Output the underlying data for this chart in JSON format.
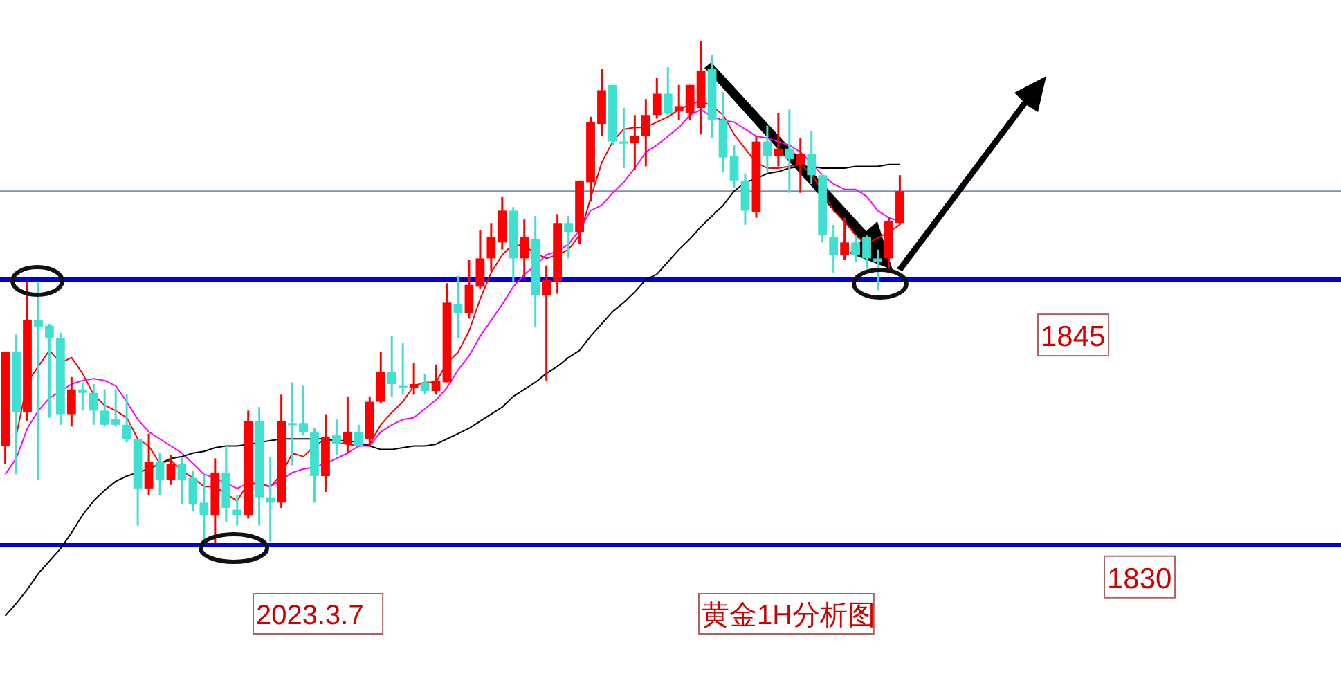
{
  "chart_data": {
    "type": "candlestick",
    "categories": [
      null,
      null,
      null,
      null,
      null,
      null,
      null,
      null,
      null,
      null,
      null,
      null,
      null,
      null,
      null,
      null,
      null,
      null,
      null,
      null,
      null,
      null,
      null,
      null,
      null,
      null,
      null,
      null,
      null,
      null,
      null,
      null,
      null,
      null,
      null,
      null,
      null,
      null,
      null,
      null,
      null,
      null,
      null,
      null,
      null,
      null,
      null,
      null,
      null,
      null,
      null,
      null,
      null,
      null,
      null,
      null,
      null,
      null,
      null,
      null,
      null,
      null,
      null,
      null,
      null,
      null,
      null,
      null,
      null,
      null,
      null,
      null,
      null,
      null,
      null,
      null,
      null,
      null,
      null,
      null,
      null,
      null
    ],
    "ohlc": [
      [
        1835.6,
        1840.9,
        1834.6,
        1840.9
      ],
      [
        1840.9,
        1841.9,
        1834.0,
        1837.5
      ],
      [
        1837.5,
        1844.9,
        1837.0,
        1842.7
      ],
      [
        1842.7,
        1844.9,
        1833.7,
        1842.3
      ],
      [
        1842.4,
        1842.5,
        1837.2,
        1841.7
      ],
      [
        1841.7,
        1842.0,
        1836.8,
        1837.4
      ],
      [
        1837.4,
        1839.5,
        1836.7,
        1838.8
      ],
      [
        1838.8,
        1839.2,
        1837.6,
        1838.6
      ],
      [
        1838.6,
        1839.1,
        1836.8,
        1837.6
      ],
      [
        1837.6,
        1838.8,
        1836.7,
        1836.8
      ],
      [
        1837.1,
        1838.8,
        1836.7,
        1836.8
      ],
      [
        1836.8,
        1838.5,
        1835.8,
        1836.0
      ],
      [
        1836.0,
        1836.0,
        1831.1,
        1833.2
      ],
      [
        1833.2,
        1836.3,
        1832.8,
        1834.7
      ],
      [
        1834.7,
        1835.2,
        1832.8,
        1833.7
      ],
      [
        1833.7,
        1835.1,
        1833.4,
        1834.6
      ],
      [
        1834.6,
        1835.0,
        1832.3,
        1833.7
      ],
      [
        1833.8,
        1834.2,
        1831.9,
        1832.3
      ],
      [
        1832.4,
        1834.0,
        1830.1,
        1831.7
      ],
      [
        1831.7,
        1834.9,
        1830.1,
        1834.1
      ],
      [
        1834.1,
        1835.6,
        1831.3,
        1832.1
      ],
      [
        1832.0,
        1832.8,
        1831.1,
        1831.7
      ],
      [
        1831.7,
        1837.6,
        1831.5,
        1837.0
      ],
      [
        1837.0,
        1837.8,
        1831.1,
        1832.7
      ],
      [
        1832.7,
        1835.0,
        1830.2,
        1832.4
      ],
      [
        1832.4,
        1838.5,
        1832.1,
        1837.0
      ],
      [
        1836.9,
        1839.2,
        1834.5,
        1836.8
      ],
      [
        1836.9,
        1839.0,
        1836.2,
        1836.4
      ],
      [
        1836.4,
        1836.6,
        1832.4,
        1833.9
      ],
      [
        1833.9,
        1837.4,
        1833.0,
        1836.1
      ],
      [
        1836.2,
        1837.1,
        1835.1,
        1835.7
      ],
      [
        1835.7,
        1838.4,
        1835.2,
        1836.4
      ],
      [
        1836.4,
        1836.8,
        1835.6,
        1835.6
      ],
      [
        1836.0,
        1838.4,
        1835.6,
        1838.1
      ],
      [
        1838.1,
        1840.9,
        1838.0,
        1839.8
      ],
      [
        1839.8,
        1841.8,
        1838.4,
        1839.1
      ],
      [
        1839.0,
        1841.4,
        1838.5,
        1838.9
      ],
      [
        1838.9,
        1840.3,
        1838.5,
        1839.1
      ],
      [
        1839.2,
        1839.7,
        1838.5,
        1838.7
      ],
      [
        1838.7,
        1840.2,
        1838.5,
        1839.3
      ],
      [
        1839.2,
        1844.8,
        1839.2,
        1843.7
      ],
      [
        1843.6,
        1845.2,
        1841.7,
        1843.1
      ],
      [
        1843.1,
        1846.1,
        1842.8,
        1844.7
      ],
      [
        1844.6,
        1847.8,
        1844.5,
        1846.2
      ],
      [
        1846.2,
        1848.2,
        1845.5,
        1847.4
      ],
      [
        1847.1,
        1849.7,
        1846.7,
        1848.9
      ],
      [
        1848.9,
        1849.1,
        1844.9,
        1846.2
      ],
      [
        1846.2,
        1848.4,
        1845.1,
        1847.4
      ],
      [
        1847.3,
        1848.6,
        1842.3,
        1844.1
      ],
      [
        1844.1,
        1845.8,
        1839.3,
        1845.0
      ],
      [
        1844.9,
        1848.7,
        1844.2,
        1848.2
      ],
      [
        1848.2,
        1848.6,
        1846.2,
        1847.7
      ],
      [
        1847.7,
        1850.6,
        1847.0,
        1850.6
      ],
      [
        1850.5,
        1854.2,
        1849.4,
        1853.9
      ],
      [
        1853.8,
        1856.9,
        1853.1,
        1855.7
      ],
      [
        1856.0,
        1856.0,
        1852.6,
        1852.8
      ],
      [
        1852.8,
        1854.7,
        1851.3,
        1852.7
      ],
      [
        1852.7,
        1854.3,
        1851.2,
        1853.1
      ],
      [
        1853.1,
        1855.2,
        1851.4,
        1854.3
      ],
      [
        1854.3,
        1856.4,
        1854.1,
        1855.5
      ],
      [
        1855.5,
        1857.0,
        1854.3,
        1854.4
      ],
      [
        1854.5,
        1856.0,
        1854.0,
        1854.8
      ],
      [
        1854.4,
        1856.0,
        1854.0,
        1856.0
      ],
      [
        1854.7,
        1858.5,
        1853.2,
        1856.8
      ],
      [
        1856.9,
        1857.7,
        1853.0,
        1854.0
      ],
      [
        1854.0,
        1855.6,
        1851.1,
        1851.9
      ],
      [
        1852.0,
        1852.6,
        1850.2,
        1850.6
      ],
      [
        1850.6,
        1851.0,
        1848.1,
        1848.9
      ],
      [
        1848.8,
        1853.1,
        1848.5,
        1852.8
      ],
      [
        1852.8,
        1853.7,
        1851.1,
        1852.0
      ],
      [
        1852.0,
        1854.4,
        1851.4,
        1852.4
      ],
      [
        1852.4,
        1854.6,
        1849.9,
        1851.8
      ],
      [
        1851.5,
        1853.0,
        1849.9,
        1852.1
      ],
      [
        1852.1,
        1853.4,
        1850.4,
        1850.9
      ],
      [
        1850.9,
        1851.0,
        1847.1,
        1847.5
      ],
      [
        1847.4,
        1848.1,
        1845.4,
        1846.4
      ],
      [
        1846.4,
        1848.5,
        1846.1,
        1847.1
      ],
      [
        1847.1,
        1847.5,
        1846.0,
        1846.4
      ],
      [
        1847.4,
        1847.5,
        1845.6,
        1846.2
      ],
      [
        1846.2,
        1846.7,
        1844.4,
        1846.0
      ],
      [
        1846.2,
        1848.5,
        1845.4,
        1848.3
      ],
      [
        1848.2,
        1850.9,
        1848.1,
        1850.0
      ]
    ],
    "colors": [
      "#ff0000",
      "#40e0d0",
      "#ff0000",
      "#40e0d0",
      "#40e0d0",
      "#40e0d0",
      "#ff0000",
      "#40e0d0",
      "#40e0d0",
      "#40e0d0",
      "#40e0d0",
      "#40e0d0",
      "#40e0d0",
      "#ff0000",
      "#40e0d0",
      "#ff0000",
      "#40e0d0",
      "#40e0d0",
      "#40e0d0",
      "#ff0000",
      "#40e0d0",
      "#40e0d0",
      "#ff0000",
      "#40e0d0",
      "#40e0d0",
      "#ff0000",
      "#40e0d0",
      "#40e0d0",
      "#40e0d0",
      "#ff0000",
      "#40e0d0",
      "#ff0000",
      "#40e0d0",
      "#ff0000",
      "#ff0000",
      "#40e0d0",
      "#40e0d0",
      "#ff0000",
      "#40e0d0",
      "#ff0000",
      "#ff0000",
      "#40e0d0",
      "#ff0000",
      "#ff0000",
      "#ff0000",
      "#ff0000",
      "#40e0d0",
      "#ff0000",
      "#40e0d0",
      "#ff0000",
      "#ff0000",
      "#40e0d0",
      "#ff0000",
      "#ff0000",
      "#ff0000",
      "#40e0d0",
      "#40e0d0",
      "#ff0000",
      "#ff0000",
      "#ff0000",
      "#40e0d0",
      "#ff0000",
      "#ff0000",
      "#ff0000",
      "#40e0d0",
      "#40e0d0",
      "#40e0d0",
      "#40e0d0",
      "#ff0000",
      "#40e0d0",
      "#ff0000",
      "#40e0d0",
      "#ff0000",
      "#40e0d0",
      "#40e0d0",
      "#40e0d0",
      "#ff0000",
      "#40e0d0",
      "#40e0d0",
      "#40e0d0",
      "#ff0000",
      "#ff0000"
    ],
    "series": [
      {
        "type": "line",
        "color": "#ff0000",
        "values": [
          null,
          1836.2,
          1839.2,
          1840.1,
          1841.0,
          1840.3,
          1840.6,
          1839.7,
          1838.5,
          1837.9,
          1837.6,
          1837.2,
          1836.0,
          1835.6,
          1834.6,
          1834.8,
          1834.2,
          1833.8,
          1833.3,
          1833.3,
          1832.9,
          1832.5,
          1833.5,
          1833.5,
          1833.3,
          1834.0,
          1835.2,
          1835.0,
          1835.6,
          1836.0,
          1835.8,
          1835.7,
          1835.6,
          1835.7,
          1836.8,
          1837.5,
          1838.1,
          1839.0,
          1839.2,
          1839.2,
          1840.3,
          1840.9,
          1842.1,
          1843.9,
          1845.4,
          1846.4,
          1847.0,
          1846.9,
          1846.5,
          1846.2,
          1846.4,
          1846.7,
          1847.5,
          1849.6,
          1851.6,
          1852.8,
          1853.5,
          1853.6,
          1853.6,
          1853.9,
          1854.2,
          1854.6,
          1854.9,
          1855.1,
          1854.8,
          1854.3,
          1853.2,
          1852.4,
          1851.6,
          1851.3,
          1851.3,
          1851.4,
          1851.5,
          1851.0,
          null,
          1848.9,
          1848.3,
          1847.5,
          1847.0,
          null,
          1847.7,
          1848.1
        ]
      },
      {
        "type": "line",
        "color": "#ff00ff",
        "values": [
          1834.0,
          1834.9,
          1836.6,
          1837.6,
          1838.3,
          1838.7,
          1839.1,
          1839.3,
          1839.4,
          1839.3,
          1839.0,
          1838.1,
          1837.1,
          1836.4,
          1836.0,
          1835.6,
          1835.2,
          1834.6,
          1834.0,
          1833.8,
          1833.5,
          1833.2,
          1833.5,
          1833.4,
          1833.3,
          1833.7,
          1834.1,
          1834.3,
          1834.4,
          1834.6,
          1834.9,
          1835.2,
          1835.6,
          1835.6,
          1836.4,
          1836.8,
          1837.1,
          1837.2,
          1837.7,
          1838.2,
          1838.9,
          1839.9,
          1840.7,
          1841.8,
          1842.7,
          1843.6,
          1844.6,
          1845.3,
          1845.8,
          1846.4,
          1846.6,
          1847.0,
          1847.8,
          1848.9,
          1849.2,
          1849.9,
          1850.5,
          1851.3,
          1852.2,
          1852.6,
          1853.1,
          1853.6,
          1854.3,
          1854.6,
          1854.2,
          1854.0,
          1853.9,
          1853.5,
          1853.1,
          1853.0,
          1852.8,
          1852.6,
          1852.2,
          1851.6,
          1850.9,
          1850.4,
          1850.1,
          1850.1,
          1849.7,
          1848.9,
          1848.5,
          1848.3
        ]
      },
      {
        "type": "line",
        "color": "#000000",
        "values": [
          1826.0,
          1826.7,
          1827.5,
          1828.4,
          1829.1,
          1829.8,
          1830.7,
          1831.7,
          1832.5,
          1833.1,
          1833.6,
          1833.9,
          1834.1,
          1834.3,
          1834.6,
          1834.9,
          1835.0,
          1835.2,
          1835.3,
          1835.5,
          1835.6,
          1835.6,
          1835.7,
          1835.8,
          1835.9,
          1836.0,
          1836.0,
          1836.0,
          1836.0,
          1836.0,
          1835.9,
          1835.9,
          1835.8,
          1835.6,
          1835.4,
          1835.4,
          1835.5,
          1835.6,
          1835.6,
          1835.7,
          1836.0,
          1836.3,
          1836.6,
          1837.0,
          1837.4,
          1837.8,
          1838.4,
          1838.8,
          1839.2,
          1839.7,
          1840.1,
          1840.6,
          1841.0,
          1841.8,
          1842.5,
          1843.2,
          1843.7,
          1844.3,
          1845.0,
          1845.3,
          1846.0,
          1846.7,
          1847.3,
          1848.0,
          1848.6,
          1849.2,
          1850.0,
          1850.5,
          1850.7,
          1851.0,
          1851.1,
          1851.3,
          1851.4,
          1851.4,
          1851.3,
          1851.3,
          1851.3,
          1851.4,
          1851.4,
          1851.4,
          1851.5,
          1851.5
        ]
      }
    ],
    "ylim": [
      1821.7,
      1860.8
    ],
    "tick_labels": false,
    "ref_lines": [
      {
        "axis": "y",
        "value": 1850.0,
        "color": "#7f93a8"
      },
      {
        "axis": "y",
        "value": 1845,
        "label": "1845",
        "color": "#0000dd"
      },
      {
        "axis": "y",
        "value": 1830,
        "label": "1830",
        "color": "#0000dd"
      }
    ],
    "annotations": [
      "2023.3.7",
      "黄金1H分析图"
    ]
  }
}
